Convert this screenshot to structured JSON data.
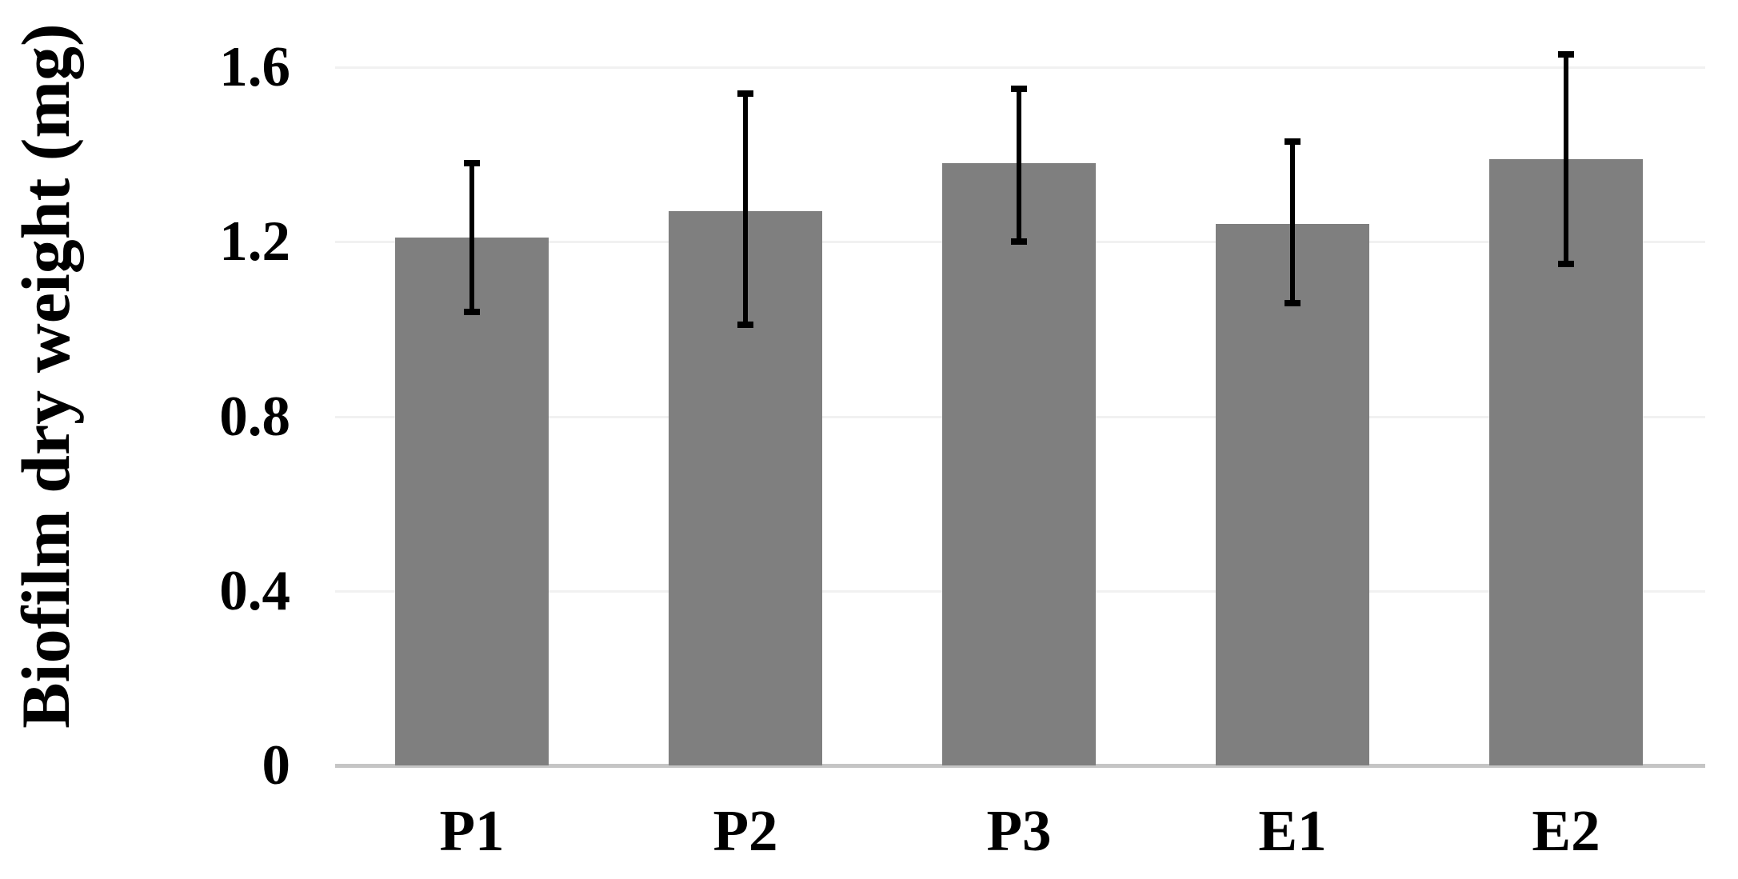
{
  "chart_data": {
    "type": "bar",
    "title": "",
    "xlabel": "",
    "ylabel": "Biofilm dry weight (mg)",
    "categories": [
      "P1",
      "P2",
      "P3",
      "E1",
      "E2"
    ],
    "series": [
      {
        "name": "Biofilm dry weight (mg)",
        "values": [
          1.21,
          1.27,
          1.38,
          1.24,
          1.39
        ]
      }
    ],
    "error_bars": {
      "upper": [
        1.38,
        1.54,
        1.55,
        1.43,
        1.63
      ],
      "lower": [
        1.04,
        1.01,
        1.2,
        1.06,
        1.15
      ]
    },
    "ylim": [
      0,
      1.6
    ],
    "ytick_values": [
      0,
      0.4,
      0.8,
      1.2,
      1.6
    ],
    "ytick_labels": [
      "0",
      "0.4",
      "0.8",
      "1.2",
      "1.6"
    ],
    "grid": "horizontal gridlines on, very faint",
    "legend": "none",
    "colors": {
      "bar": "#7f7f7f",
      "error_bar": "#000000",
      "gridline": "#f1f1f1",
      "axis_line": "#c5c5c5",
      "text": "#000000",
      "background": "#ffffff"
    }
  }
}
